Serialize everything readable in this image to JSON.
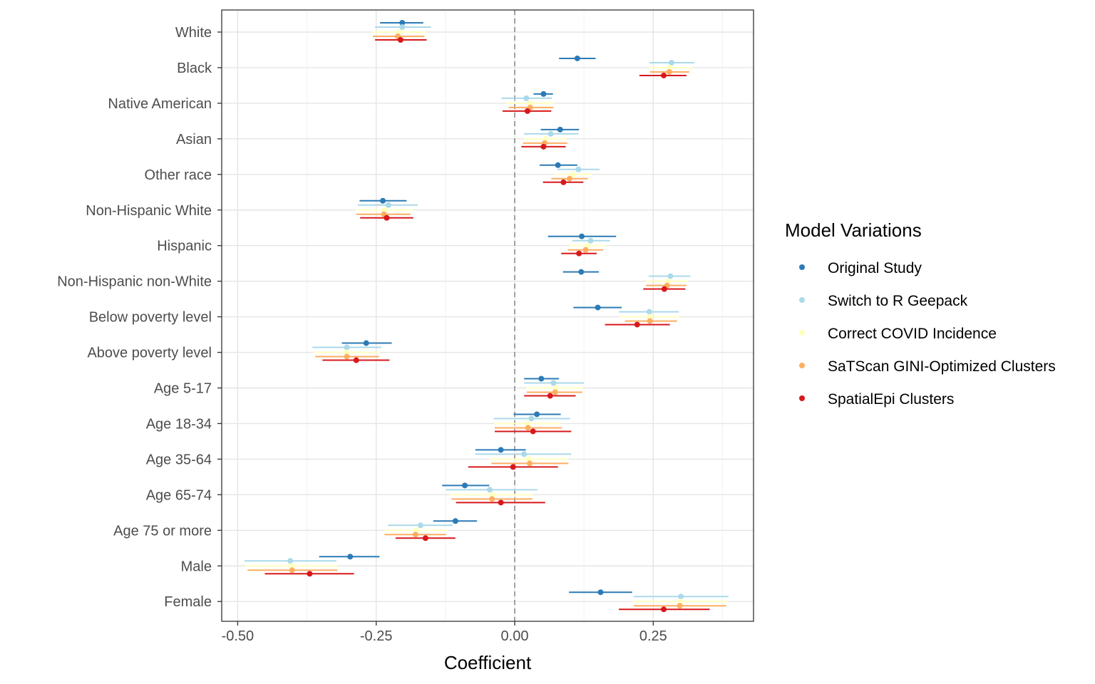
{
  "chart_data": {
    "type": "forest",
    "xlabel": "Coefficient",
    "ylabel": "",
    "xlim": [
      -0.52,
      0.435
    ],
    "xticks": [
      -0.5,
      -0.25,
      0.0,
      0.25
    ],
    "xtick_labels": [
      "-0.50",
      "-0.25",
      "0.00",
      "0.25"
    ],
    "reference_line": 0,
    "grid": true,
    "legend_title": "Model Variations",
    "legend_position": "right",
    "categories": [
      "White",
      "Black",
      "Native American",
      "Asian",
      "Other race",
      "Non-Hispanic White",
      "Hispanic",
      "Non-Hispanic non-White",
      "Below poverty level",
      "Above poverty level",
      "Age 5-17",
      "Age 18-34",
      "Age 35-64",
      "Age 65-74",
      "Age 75 or more",
      "Male",
      "Female"
    ],
    "series": [
      {
        "name": "Original Study",
        "color": "#2c7bb6",
        "estimates": [
          -0.203,
          0.113,
          0.052,
          0.082,
          0.078,
          -0.238,
          0.121,
          0.12,
          0.15,
          -0.268,
          0.048,
          0.04,
          -0.025,
          -0.09,
          -0.107,
          -0.297,
          0.155
        ],
        "lower": [
          -0.243,
          0.08,
          0.034,
          0.047,
          0.045,
          -0.28,
          0.06,
          0.087,
          0.106,
          -0.312,
          0.017,
          -0.002,
          -0.071,
          -0.131,
          -0.147,
          -0.353,
          0.098
        ],
        "upper": [
          -0.165,
          0.146,
          0.069,
          0.116,
          0.113,
          -0.195,
          0.183,
          0.152,
          0.193,
          -0.222,
          0.08,
          0.083,
          0.02,
          -0.046,
          -0.068,
          -0.244,
          0.212
        ]
      },
      {
        "name": "Switch to R Geepack",
        "color": "#abd9e9",
        "estimates": [
          -0.203,
          0.283,
          0.021,
          0.065,
          0.115,
          -0.228,
          0.137,
          0.281,
          0.243,
          -0.303,
          0.07,
          0.03,
          0.017,
          -0.045,
          -0.17,
          -0.405,
          0.3
        ],
        "lower": [
          -0.252,
          0.243,
          -0.024,
          0.017,
          0.077,
          -0.283,
          0.104,
          0.242,
          0.188,
          -0.365,
          0.017,
          -0.038,
          -0.071,
          -0.124,
          -0.229,
          -0.488,
          0.215
        ],
        "upper": [
          -0.151,
          0.324,
          0.067,
          0.115,
          0.153,
          -0.175,
          0.172,
          0.317,
          0.296,
          -0.241,
          0.125,
          0.1,
          0.102,
          0.041,
          -0.112,
          -0.322,
          0.386
        ]
      },
      {
        "name": "Correct COVID Incidence",
        "color": "#ffffbf",
        "estimates": [
          -0.208,
          0.28,
          0.028,
          0.056,
          0.105,
          -0.235,
          0.132,
          0.277,
          0.244,
          -0.303,
          0.074,
          0.023,
          0.025,
          -0.04,
          -0.178,
          -0.403,
          0.3
        ],
        "lower": [
          -0.257,
          0.243,
          -0.015,
          0.018,
          0.072,
          -0.288,
          0.099,
          0.238,
          0.19,
          -0.363,
          0.021,
          -0.037,
          -0.046,
          -0.118,
          -0.235,
          -0.486,
          0.214
        ],
        "upper": [
          -0.16,
          0.32,
          0.07,
          0.094,
          0.138,
          -0.184,
          0.164,
          0.312,
          0.297,
          -0.243,
          0.123,
          0.083,
          0.095,
          0.032,
          -0.12,
          -0.32,
          0.384
        ]
      },
      {
        "name": "SaTScan GINI-Optimized Clusters",
        "color": "#fdae61",
        "estimates": [
          -0.211,
          0.279,
          0.028,
          0.054,
          0.099,
          -0.236,
          0.128,
          0.275,
          0.244,
          -0.303,
          0.073,
          0.024,
          0.027,
          -0.041,
          -0.179,
          -0.402,
          0.298
        ],
        "lower": [
          -0.256,
          0.244,
          -0.011,
          0.015,
          0.066,
          -0.286,
          0.096,
          0.237,
          0.199,
          -0.36,
          0.022,
          -0.036,
          -0.042,
          -0.114,
          -0.235,
          -0.482,
          0.215
        ],
        "upper": [
          -0.163,
          0.315,
          0.07,
          0.095,
          0.132,
          -0.188,
          0.16,
          0.31,
          0.293,
          -0.245,
          0.122,
          0.085,
          0.097,
          0.032,
          -0.124,
          -0.32,
          0.382
        ]
      },
      {
        "name": "SpatialEpi Clusters",
        "color": "#d7191c",
        "estimates": [
          -0.206,
          0.269,
          0.023,
          0.052,
          0.088,
          -0.231,
          0.116,
          0.27,
          0.221,
          -0.286,
          0.064,
          0.033,
          -0.003,
          -0.025,
          -0.161,
          -0.37,
          0.269
        ],
        "lower": [
          -0.252,
          0.225,
          -0.022,
          0.012,
          0.051,
          -0.279,
          0.084,
          0.232,
          0.163,
          -0.347,
          0.017,
          -0.036,
          -0.084,
          -0.106,
          -0.215,
          -0.451,
          0.188
        ],
        "upper": [
          -0.159,
          0.31,
          0.066,
          0.092,
          0.124,
          -0.183,
          0.148,
          0.308,
          0.28,
          -0.226,
          0.11,
          0.102,
          0.078,
          0.055,
          -0.107,
          -0.29,
          0.352
        ]
      }
    ]
  }
}
